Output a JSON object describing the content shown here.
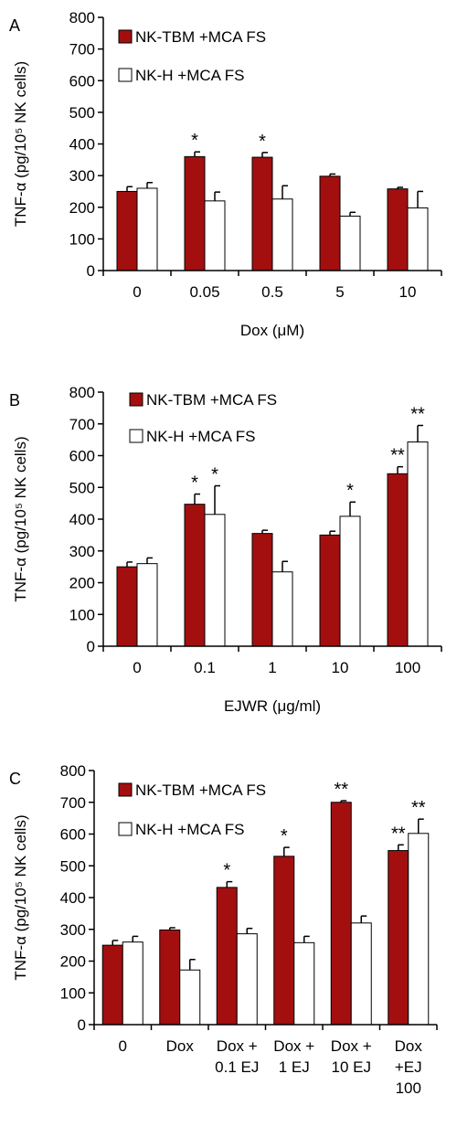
{
  "colors": {
    "red": "#a30f0f",
    "white": "#ffffff",
    "axis": "#000000"
  },
  "chart_data": [
    {
      "panel_label": "A",
      "type": "bar",
      "ylabel": "TNF-α (pg/10⁵ NK cells)",
      "xlabel": "Dox (μM)",
      "ylim": [
        0,
        800
      ],
      "yticks": [
        0,
        100,
        200,
        300,
        400,
        500,
        600,
        700,
        800
      ],
      "categories": [
        [
          "0"
        ],
        [
          "0.05"
        ],
        [
          "0.5"
        ],
        [
          "5"
        ],
        [
          "10"
        ]
      ],
      "series": [
        {
          "name": "NK-TBM +MCA FS",
          "color": "#a30f0f",
          "values": [
            250,
            360,
            358,
            298,
            258
          ],
          "errors": [
            15,
            15,
            15,
            7,
            5
          ],
          "marks": [
            "",
            "*",
            "*",
            "",
            ""
          ]
        },
        {
          "name": "NK-H +MCA FS",
          "color": "#ffffff",
          "values": [
            260,
            220,
            226,
            172,
            198
          ],
          "errors": [
            18,
            28,
            42,
            12,
            52
          ],
          "marks": [
            "",
            "",
            "",
            "",
            ""
          ]
        }
      ],
      "grid": false,
      "legend_position": "top-left"
    },
    {
      "panel_label": "B",
      "type": "bar",
      "ylabel": "TNF-α (pg/10⁵ NK cells)",
      "xlabel": "EJWR (μg/ml)",
      "ylim": [
        0,
        800
      ],
      "yticks": [
        0,
        100,
        200,
        300,
        400,
        500,
        600,
        700,
        800
      ],
      "categories": [
        [
          "0"
        ],
        [
          "0.1"
        ],
        [
          "1"
        ],
        [
          "10"
        ],
        [
          "100"
        ]
      ],
      "series": [
        {
          "name": "NK-TBM +MCA FS",
          "color": "#a30f0f",
          "values": [
            250,
            447,
            355,
            350,
            543
          ],
          "errors": [
            15,
            32,
            10,
            12,
            22
          ],
          "marks": [
            "",
            "*",
            "",
            "",
            "**"
          ]
        },
        {
          "name": "NK-H +MCA FS",
          "color": "#ffffff",
          "values": [
            260,
            415,
            234,
            409,
            643
          ],
          "errors": [
            18,
            90,
            33,
            45,
            52
          ],
          "marks": [
            "",
            "*",
            "",
            "*",
            "**"
          ]
        }
      ],
      "grid": false,
      "legend_position": "top-left"
    },
    {
      "panel_label": "C",
      "type": "bar",
      "ylabel": "TNF-α (pg/10⁵ NK cells)",
      "xlabel": "",
      "ylim": [
        0,
        800
      ],
      "yticks": [
        0,
        100,
        200,
        300,
        400,
        500,
        600,
        700,
        800
      ],
      "categories": [
        [
          "0"
        ],
        [
          "Dox"
        ],
        [
          "Dox +",
          "0.1 EJ"
        ],
        [
          "Dox +",
          "1 EJ"
        ],
        [
          "Dox +",
          "10 EJ"
        ],
        [
          "Dox",
          "+EJ",
          "100"
        ]
      ],
      "series": [
        {
          "name": "NK-TBM +MCA FS",
          "color": "#a30f0f",
          "values": [
            250,
            298,
            432,
            530,
            700,
            548
          ],
          "errors": [
            15,
            7,
            18,
            28,
            5,
            18
          ],
          "marks": [
            "",
            "",
            "*",
            "*",
            "**",
            "**"
          ]
        },
        {
          "name": "NK-H +MCA FS",
          "color": "#ffffff",
          "values": [
            260,
            172,
            286,
            258,
            320,
            602
          ],
          "errors": [
            18,
            33,
            17,
            20,
            22,
            45
          ],
          "marks": [
            "",
            "",
            "",
            "",
            "",
            "**"
          ]
        }
      ],
      "grid": false,
      "legend_position": "top-left"
    }
  ]
}
